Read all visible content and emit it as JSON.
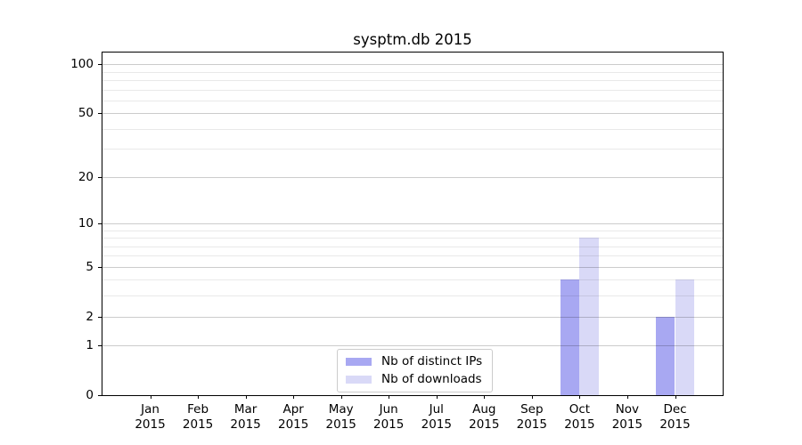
{
  "figure": {
    "background": "#ffffff"
  },
  "chart_data": {
    "type": "bar",
    "title": "sysptm.db 2015",
    "categories": [
      "Jan",
      "Feb",
      "Mar",
      "Apr",
      "May",
      "Jun",
      "Jul",
      "Aug",
      "Sep",
      "Oct",
      "Nov",
      "Dec"
    ],
    "xtick_year": "2015",
    "series": [
      {
        "name": "Nb of distinct IPs",
        "color": "#a8a8f2",
        "values": [
          0,
          0,
          0,
          0,
          0,
          0,
          0,
          0,
          0,
          4,
          0,
          2
        ]
      },
      {
        "name": "Nb of downloads",
        "color": "#d9d9f7",
        "values": [
          0,
          0,
          0,
          0,
          0,
          0,
          0,
          0,
          0,
          8,
          0,
          4
        ]
      }
    ],
    "yscale": "log1p",
    "ylim": [
      0,
      118
    ],
    "yticks_major": [
      0,
      1,
      2,
      5,
      10,
      20,
      50,
      100
    ],
    "yticks_minor": [
      3,
      4,
      6,
      7,
      8,
      9,
      30,
      40,
      60,
      70,
      80,
      90
    ],
    "xlim": [
      -1,
      12
    ],
    "bar_width_units": 0.4,
    "grid": true,
    "legend_position": "lower center"
  },
  "colors": {
    "spine": "#000000",
    "grid_major": "rgba(0,0,0,0.20)",
    "grid_minor": "rgba(0,0,0,0.085)",
    "legend_border": "#cccccc",
    "text": "#000000"
  }
}
